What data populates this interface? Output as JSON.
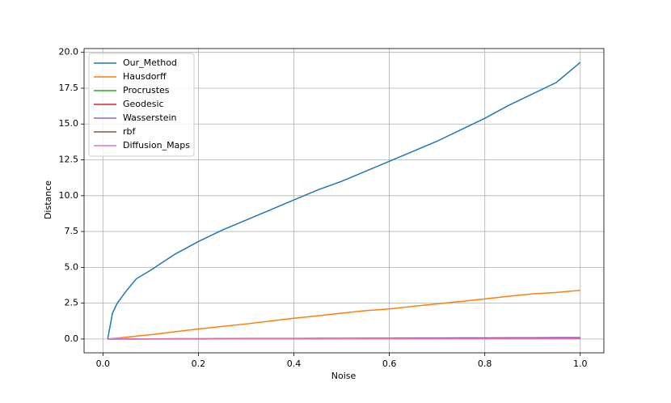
{
  "chart_data": {
    "type": "line",
    "xlabel": "Noise",
    "ylabel": "Distance",
    "x": [
      0.01,
      0.02,
      0.03,
      0.05,
      0.07,
      0.1,
      0.15,
      0.2,
      0.25,
      0.3,
      0.35,
      0.4,
      0.45,
      0.5,
      0.55,
      0.6,
      0.65,
      0.7,
      0.75,
      0.8,
      0.85,
      0.9,
      0.95,
      1.0
    ],
    "series": [
      {
        "name": "Our_Method",
        "color": "#1f77b4",
        "values": [
          0,
          1.8,
          2.5,
          3.4,
          4.2,
          4.8,
          5.9,
          6.8,
          7.6,
          8.3,
          9.0,
          9.7,
          10.4,
          11.0,
          11.7,
          12.4,
          13.1,
          13.8,
          14.6,
          15.4,
          16.3,
          17.1,
          17.9,
          19.3
        ]
      },
      {
        "name": "Hausdorff",
        "color": "#ff7f0e",
        "values": [
          0,
          0.03,
          0.06,
          0.13,
          0.2,
          0.3,
          0.5,
          0.7,
          0.88,
          1.05,
          1.25,
          1.45,
          1.62,
          1.8,
          1.98,
          2.1,
          2.28,
          2.45,
          2.62,
          2.8,
          2.98,
          3.15,
          3.25,
          3.4
        ]
      },
      {
        "name": "Procrustes",
        "color": "#2ca02c",
        "values": [
          0,
          0,
          0,
          0,
          0,
          0.01,
          0.01,
          0.01,
          0.01,
          0.02,
          0.02,
          0.02,
          0.02,
          0.03,
          0.03,
          0.03,
          0.03,
          0.04,
          0.04,
          0.04,
          0.04,
          0.05,
          0.05,
          0.05
        ]
      },
      {
        "name": "Geodesic",
        "color": "#d62728",
        "values": [
          0,
          0,
          0,
          0,
          0,
          0.01,
          0.01,
          0.01,
          0.02,
          0.02,
          0.02,
          0.02,
          0.03,
          0.03,
          0.03,
          0.04,
          0.04,
          0.04,
          0.05,
          0.05,
          0.05,
          0.05,
          0.06,
          0.06
        ]
      },
      {
        "name": "Wasserstein",
        "color": "#9467bd",
        "values": [
          0,
          0,
          0,
          0.01,
          0.01,
          0.01,
          0.02,
          0.02,
          0.03,
          0.03,
          0.04,
          0.04,
          0.05,
          0.05,
          0.06,
          0.06,
          0.07,
          0.07,
          0.08,
          0.08,
          0.09,
          0.09,
          0.1,
          0.1
        ]
      },
      {
        "name": "rbf",
        "color": "#8c564b",
        "values": [
          0,
          0,
          0,
          0,
          0,
          0,
          0,
          0,
          0.01,
          0.01,
          0.01,
          0.01,
          0.01,
          0.01,
          0.01,
          0.01,
          0.01,
          0.01,
          0.02,
          0.02,
          0.02,
          0.02,
          0.02,
          0.02
        ]
      },
      {
        "name": "Diffusion_Maps",
        "color": "#e377c2",
        "values": [
          0,
          0,
          0,
          0,
          0,
          0,
          0,
          0,
          0,
          0,
          0,
          0,
          0,
          0.01,
          0.01,
          0.01,
          0.01,
          0.01,
          0.01,
          0.01,
          0.01,
          0.01,
          0.01,
          0.01
        ]
      }
    ],
    "xlim": [
      -0.0395,
      1.0495
    ],
    "ylim": [
      -0.965,
      20.265
    ],
    "xticks": [
      {
        "value": 0,
        "label": "0.0"
      },
      {
        "value": 0.2,
        "label": "0.2"
      },
      {
        "value": 0.4,
        "label": "0.4"
      },
      {
        "value": 0.6,
        "label": "0.6"
      },
      {
        "value": 0.8,
        "label": "0.8"
      },
      {
        "value": 1,
        "label": "1.0"
      }
    ],
    "yticks": [
      {
        "value": 0,
        "label": "0.0"
      },
      {
        "value": 2.5,
        "label": "2.5"
      },
      {
        "value": 5,
        "label": "5.0"
      },
      {
        "value": 7.5,
        "label": "7.5"
      },
      {
        "value": 10,
        "label": "10.0"
      },
      {
        "value": 12.5,
        "label": "12.5"
      },
      {
        "value": 15,
        "label": "15.0"
      },
      {
        "value": 17.5,
        "label": "17.5"
      },
      {
        "value": 20,
        "label": "20.0"
      }
    ],
    "grid": true,
    "legend": "upper-left"
  }
}
